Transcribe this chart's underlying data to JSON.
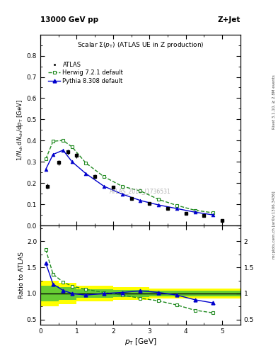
{
  "title_left": "13000 GeV pp",
  "title_right": "Z+Jet",
  "plot_title": "Scalar $\\Sigma(p_\\mathrm{T})$ (ATLAS UE in Z production)",
  "ylabel_main": "$1/N_\\mathrm{ch}\\,\\mathrm{d}N_\\mathrm{ch}/\\mathrm{d}p_\\mathrm{T}$ [GeV]",
  "ylabel_ratio": "Ratio to ATLAS",
  "xlabel": "$p_\\mathrm{T}$ [GeV]",
  "watermark": "ATLAS_2019_I1736531",
  "right_label": "mcplots.cern.ch [arXiv:1306.3436]",
  "right_label2": "Rivet 3.1.10, ≥ 2.8M events",
  "atlas_x": [
    0.2,
    0.5,
    0.75,
    1.0,
    1.5,
    2.0,
    2.5,
    3.0,
    3.5,
    4.0,
    4.5,
    5.0
  ],
  "atlas_y": [
    0.185,
    0.297,
    0.347,
    0.33,
    0.23,
    0.181,
    0.127,
    0.105,
    0.082,
    0.058,
    0.048,
    0.025
  ],
  "atlas_yerr": [
    0.012,
    0.012,
    0.012,
    0.012,
    0.01,
    0.008,
    0.007,
    0.006,
    0.005,
    0.004,
    0.003,
    0.002
  ],
  "herwig_x": [
    0.15,
    0.35,
    0.625,
    0.875,
    1.25,
    1.75,
    2.25,
    2.75,
    3.25,
    3.75,
    4.25,
    4.75
  ],
  "herwig_y": [
    0.313,
    0.397,
    0.401,
    0.37,
    0.295,
    0.23,
    0.185,
    0.163,
    0.123,
    0.095,
    0.072,
    0.06
  ],
  "pythia_x": [
    0.15,
    0.35,
    0.625,
    0.875,
    1.25,
    1.75,
    2.25,
    2.75,
    3.25,
    3.75,
    4.25,
    4.75
  ],
  "pythia_y": [
    0.265,
    0.335,
    0.355,
    0.3,
    0.245,
    0.185,
    0.148,
    0.118,
    0.097,
    0.08,
    0.063,
    0.05
  ],
  "herwig_ratio": [
    1.84,
    1.37,
    1.22,
    1.14,
    1.08,
    1.02,
    0.97,
    0.91,
    0.86,
    0.78,
    0.68,
    0.63
  ],
  "pythia_ratio": [
    1.58,
    1.18,
    1.06,
    1.0,
    0.97,
    1.0,
    1.02,
    1.05,
    1.02,
    0.97,
    0.88,
    0.82
  ],
  "color_atlas": "#000000",
  "color_herwig": "#228B22",
  "color_pythia": "#0000cc",
  "ylim_main": [
    0.0,
    0.9
  ],
  "yticks_main": [
    0.0,
    0.1,
    0.2,
    0.3,
    0.4,
    0.5,
    0.6,
    0.7,
    0.8
  ],
  "ylim_ratio": [
    0.4,
    2.3
  ],
  "yticks_ratio": [
    0.5,
    1.0,
    1.5,
    2.0
  ],
  "xlim": [
    0.0,
    5.5
  ],
  "xticks": [
    0,
    1,
    2,
    3,
    4,
    5
  ],
  "bg_color": "#ffffff",
  "band_edges": [
    0.0,
    0.5,
    1.0,
    2.0,
    3.0,
    4.0,
    5.5
  ],
  "band_yellow_low": [
    0.75,
    0.8,
    0.85,
    0.88,
    0.9,
    0.9,
    0.9
  ],
  "band_yellow_high": [
    1.25,
    1.2,
    1.15,
    1.12,
    1.1,
    1.1,
    1.1
  ],
  "band_green_low": [
    0.85,
    0.88,
    0.92,
    0.93,
    0.95,
    0.95,
    0.95
  ],
  "band_green_high": [
    1.15,
    1.12,
    1.08,
    1.07,
    1.05,
    1.05,
    1.05
  ]
}
